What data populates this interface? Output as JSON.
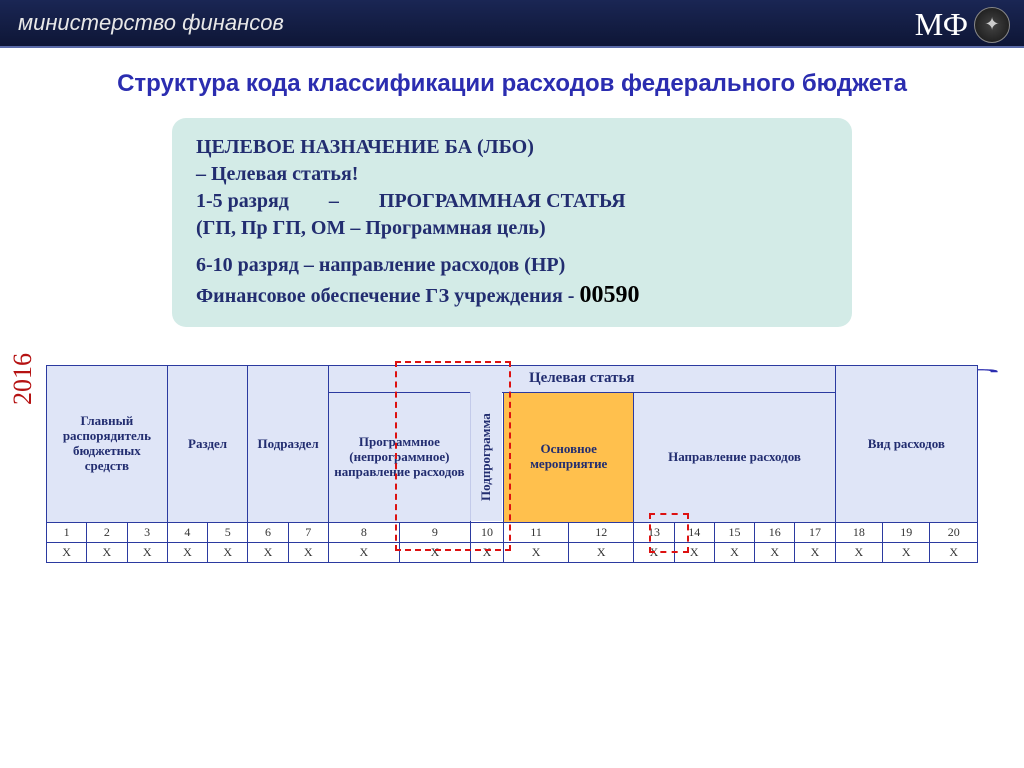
{
  "header": {
    "ministry": "министерство финансов",
    "logo_text": "МФ"
  },
  "slide": {
    "title": "Структура кода классификации расходов федерального бюджета",
    "year": "2016"
  },
  "infobox": {
    "line1": "ЦЕЛЕВОЕ НАЗНАЧЕНИЕ  БА (ЛБО)",
    "line2_a": "–      Целевая статья!",
    "line3_a": "1-5 разряд",
    "line3_b": "–",
    "line3_c": "ПРОГРАММНАЯ СТАТЬЯ",
    "line4": "(ГП, Пр ГП, ОМ – Программная цель)",
    "line5": "6-10 разряд – направление расходов (НР)",
    "line6_a": "Финансовое обеспечение ГЗ учреждения - ",
    "line6_b": "00590"
  },
  "table": {
    "top_group": "Целевая статья",
    "headers": {
      "h1": "Главный распорядитель бюджетных средств",
      "h2": "Раздел",
      "h3": "Подраздел",
      "h4": "Программное (непрограммное) направление расходов",
      "h5": "Подпрограмма",
      "h6": "Основное мероприятие",
      "h7": "Направление расходов",
      "h8": "Вид расходов"
    },
    "nums": [
      "1",
      "2",
      "3",
      "4",
      "5",
      "6",
      "7",
      "8",
      "9",
      "10",
      "11",
      "12",
      "13",
      "14",
      "15",
      "16",
      "17",
      "18",
      "19",
      "20"
    ],
    "xrow": [
      "X",
      "X",
      "X",
      "X",
      "X",
      "X",
      "X",
      "X",
      "X",
      "X",
      "X",
      "X",
      "X",
      "X",
      "X",
      "X",
      "X",
      "X",
      "X",
      "X"
    ],
    "highlight_nums": [
      11,
      12,
      17
    ],
    "highlight_x": [
      11,
      12,
      17
    ]
  },
  "styling": {
    "header_bg_top": "#1a2654",
    "header_bg_bottom": "#0e1636",
    "title_color": "#2b2db0",
    "infobox_bg": "#d3ebe7",
    "table_header_bg": "#dfe5f7",
    "border_color": "#2b3aa0",
    "highlight_bg": "#ffc04d",
    "highlight_text": "#b51212",
    "year_color": "#b51212"
  }
}
